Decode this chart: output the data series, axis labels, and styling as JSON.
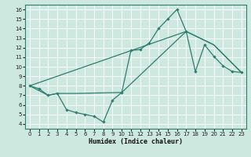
{
  "xlabel": "Humidex (Indice chaleur)",
  "xlim": [
    -0.5,
    23.5
  ],
  "ylim": [
    3.5,
    16.5
  ],
  "yticks": [
    4,
    5,
    6,
    7,
    8,
    9,
    10,
    11,
    12,
    13,
    14,
    15,
    16
  ],
  "xticks": [
    0,
    1,
    2,
    3,
    4,
    5,
    6,
    7,
    8,
    9,
    10,
    11,
    12,
    13,
    14,
    15,
    16,
    17,
    18,
    19,
    20,
    21,
    22,
    23
  ],
  "background_color": "#cce8df",
  "grid_color": "#ffffff",
  "line_color": "#2e7d6e",
  "line1_x": [
    0,
    1,
    2,
    3,
    4,
    5,
    6,
    7,
    8,
    9,
    10,
    11,
    12,
    13,
    14,
    15,
    16,
    17,
    18,
    19,
    20,
    21,
    22,
    23
  ],
  "line1_y": [
    8.0,
    7.7,
    7.0,
    7.2,
    5.5,
    5.2,
    5.0,
    4.8,
    4.2,
    6.5,
    7.3,
    11.7,
    11.8,
    12.5,
    14.0,
    15.0,
    16.0,
    13.7,
    9.5,
    12.3,
    11.1,
    10.1,
    9.5,
    9.4
  ],
  "line2_x": [
    0,
    2,
    3,
    5,
    10,
    17,
    20,
    23
  ],
  "line2_y": [
    8.0,
    7.0,
    7.2,
    7.2,
    7.3,
    13.7,
    12.3,
    9.4
  ],
  "line3_x": [
    0,
    17,
    20,
    23
  ],
  "line3_y": [
    8.0,
    13.7,
    12.3,
    9.4
  ]
}
